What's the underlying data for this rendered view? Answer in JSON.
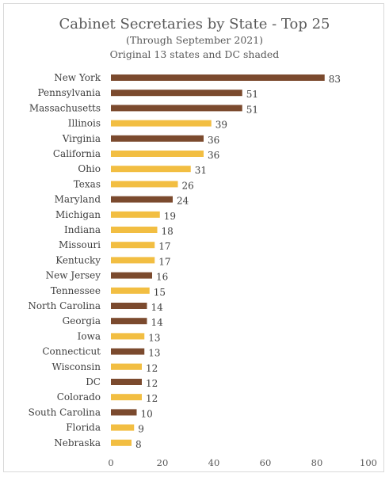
{
  "chart_data": {
    "type": "bar",
    "orientation": "horizontal",
    "title": "Cabinet Secretaries by State - Top 25",
    "subtitle_lines": [
      "(Through September 2021)",
      "Original 13 states and DC shaded"
    ],
    "categories": [
      "New York",
      "Pennsylvania",
      "Massachusetts",
      "Illinois",
      "Virginia",
      "California",
      "Ohio",
      "Texas",
      "Maryland",
      "Michigan",
      "Indiana",
      "Missouri",
      "Kentucky",
      "New Jersey",
      "Tennessee",
      "North Carolina",
      "Georgia",
      "Iowa",
      "Connecticut",
      "Wisconsin",
      "DC",
      "Colorado",
      "South Carolina",
      "Florida",
      "Nebraska"
    ],
    "values": [
      83,
      51,
      51,
      39,
      36,
      36,
      31,
      26,
      24,
      19,
      18,
      17,
      17,
      16,
      15,
      14,
      14,
      13,
      13,
      12,
      12,
      12,
      10,
      9,
      8
    ],
    "shaded": [
      true,
      true,
      true,
      false,
      true,
      false,
      false,
      false,
      true,
      false,
      false,
      false,
      false,
      true,
      false,
      true,
      true,
      false,
      true,
      false,
      true,
      false,
      true,
      false,
      false
    ],
    "colors": {
      "shaded": "#7b4a2e",
      "other": "#f2be42"
    },
    "xlim": [
      0,
      100
    ],
    "x_ticks": [
      0,
      20,
      40,
      60,
      80,
      100
    ],
    "grid": false,
    "data_labels": true
  }
}
